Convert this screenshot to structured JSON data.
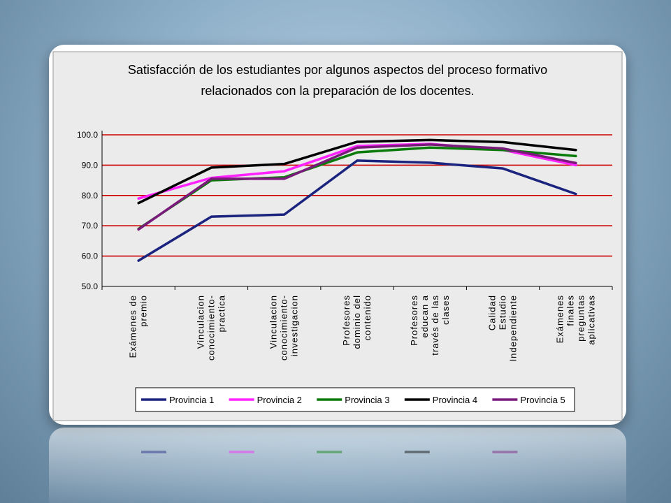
{
  "chart_data": {
    "type": "line",
    "title": "Satisfacción de los estudiantes por algunos aspectos del proceso formativo relacionados con la preparación de los docentes.",
    "title_lines": [
      "Satisfacción de los estudiantes por algunos aspectos del proceso formativo",
      "relacionados con la preparación de los docentes."
    ],
    "categories": [
      [
        "Exámenes de",
        "premio"
      ],
      [
        "Vinculacion",
        "conocimiento-",
        "practica"
      ],
      [
        "Vinculacion",
        "conocimiento-",
        "investigacion"
      ],
      [
        "Profesores",
        "dominio del",
        "contenido"
      ],
      [
        "Profesores",
        "educan a",
        "través de las",
        "clases"
      ],
      [
        "Calidad",
        "Estudio",
        "Independiente"
      ],
      [
        "Exámenes",
        "finales",
        "preguntas",
        "aplicativas"
      ]
    ],
    "ylim": [
      50,
      100
    ],
    "yticks": [
      "100.0",
      "90.0",
      "80.0",
      "70.0",
      "60.0",
      "50.0"
    ],
    "ytick_values": [
      100,
      90,
      80,
      70,
      60,
      50
    ],
    "grid": true,
    "grid_color": "#cc0000",
    "plot_background": "#ebebeb",
    "legend_position": "bottom",
    "series": [
      {
        "name": "Provincia 1",
        "color": "#1a237e",
        "values": [
          58.5,
          73.0,
          73.7,
          91.5,
          90.8,
          88.9,
          80.5
        ]
      },
      {
        "name": "Provincia 2",
        "color": "#ff22ff",
        "values": [
          79.0,
          85.8,
          88.0,
          96.3,
          97.0,
          95.0,
          90.0
        ]
      },
      {
        "name": "Provincia 3",
        "color": "#0a7a0a",
        "values": [
          69.0,
          85.0,
          86.0,
          94.2,
          95.8,
          95.0,
          93.0
        ]
      },
      {
        "name": "Provincia 4",
        "color": "#000000",
        "values": [
          77.5,
          89.2,
          90.4,
          97.7,
          98.3,
          97.6,
          95.0
        ]
      },
      {
        "name": "Provincia 5",
        "color": "#7a1a7a",
        "values": [
          68.8,
          85.5,
          85.5,
          95.8,
          96.8,
          95.5,
          90.7
        ]
      }
    ]
  }
}
